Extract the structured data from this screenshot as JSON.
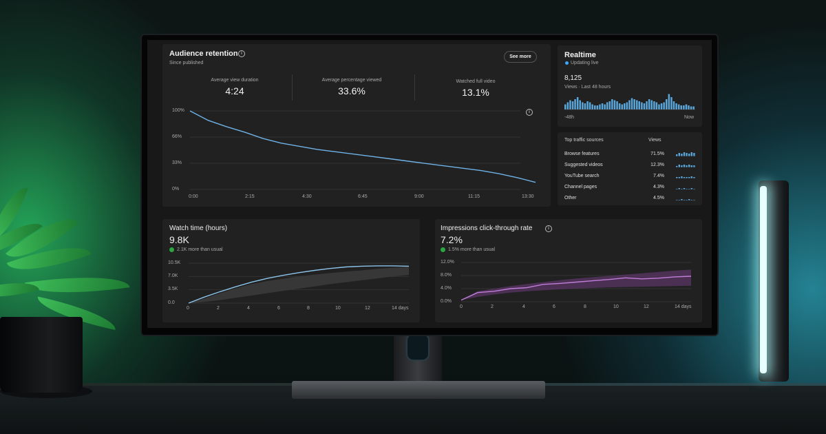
{
  "retention": {
    "title": "Audience retention",
    "subtitle": "Since published",
    "see_more": "See more",
    "metrics": [
      {
        "label": "Average view duration",
        "value": "4:24"
      },
      {
        "label": "Average percentage viewed",
        "value": "33.6%"
      },
      {
        "label": "Watched full video",
        "value": "13.1%"
      }
    ],
    "y_ticks": [
      "100%",
      "66%",
      "33%",
      "0%"
    ],
    "x_ticks": [
      "0:00",
      "2:15",
      "4:30",
      "6:45",
      "9:00",
      "11:15",
      "13:30"
    ]
  },
  "realtime": {
    "title": "Realtime",
    "status": "Updating live",
    "count": "8,125",
    "caption": "Views · Last 48 hours",
    "x_start": "-48h",
    "x_end": "Now"
  },
  "traffic": {
    "header": "Top traffic sources",
    "views_header": "Views",
    "rows": [
      {
        "label": "Browse features",
        "pct": "71.5%"
      },
      {
        "label": "Suggested videos",
        "pct": "12.3%"
      },
      {
        "label": "YouTube search",
        "pct": "7.4%"
      },
      {
        "label": "Channel pages",
        "pct": "4.3%"
      },
      {
        "label": "Other",
        "pct": "4.5%"
      }
    ]
  },
  "watch_time": {
    "title": "Watch time (hours)",
    "value": "9.8K",
    "delta": "2.1K more than usual",
    "y_ticks": [
      "10.5K",
      "7.0K",
      "3.5K",
      "0.0"
    ],
    "x_ticks": [
      "0",
      "2",
      "4",
      "6",
      "8",
      "10",
      "12",
      "14 days"
    ]
  },
  "ctr": {
    "title": "Impressions click-through rate",
    "value": "7.2%",
    "delta": "1.5% more than usual",
    "y_ticks": [
      "12.0%",
      "8.0%",
      "4.0%",
      "0.0%"
    ],
    "x_ticks": [
      "0",
      "2",
      "4",
      "6",
      "8",
      "10",
      "12",
      "14 days"
    ]
  },
  "colors": {
    "retention_line": "#6fb3e8",
    "watch_line": "#8cc4ec",
    "ctr_line": "#c07ed8",
    "realtime_bar": "#5aa7dc",
    "positive": "#2ba640"
  },
  "chart_data": [
    {
      "type": "line",
      "title": "Audience retention",
      "x": [
        "0:00",
        "0:30",
        "1:00",
        "1:30",
        "2:15",
        "3:00",
        "3:45",
        "4:30",
        "5:15",
        "6:00",
        "6:45",
        "7:30",
        "8:15",
        "9:00",
        "9:45",
        "10:30",
        "11:15",
        "12:00",
        "12:45",
        "13:30"
      ],
      "values": [
        100,
        88,
        80,
        73,
        65,
        59,
        55,
        51,
        48,
        45,
        42,
        39,
        36,
        33,
        30,
        27,
        24,
        20,
        15,
        9
      ],
      "ylim": [
        0,
        100
      ],
      "y_ticks": [
        "100%",
        "66%",
        "33%",
        "0%"
      ]
    },
    {
      "type": "line",
      "title": "Watch time (hours)",
      "x": [
        0,
        1,
        2,
        3,
        4,
        5,
        6,
        7,
        8,
        9,
        10,
        11,
        12,
        13,
        14
      ],
      "values": [
        0,
        1600,
        3000,
        4300,
        5500,
        6500,
        7300,
        8000,
        8600,
        9100,
        9500,
        9700,
        9800,
        9800,
        9700
      ],
      "band_low": [
        0,
        300,
        800,
        1400,
        2000,
        2600,
        3200,
        3800,
        4400,
        5000,
        5500,
        6000,
        6500,
        7000,
        7400
      ],
      "band_high": [
        0,
        1200,
        2600,
        3900,
        5000,
        5800,
        6400,
        7000,
        7500,
        7900,
        8300,
        8600,
        9000,
        9300,
        9600
      ],
      "ylim": [
        0,
        10500
      ]
    },
    {
      "type": "line",
      "title": "Impressions click-through rate",
      "x": [
        0,
        1,
        2,
        3,
        4,
        5,
        6,
        7,
        8,
        9,
        10,
        11,
        12,
        13,
        14
      ],
      "values": [
        0.5,
        2.8,
        3.2,
        4.0,
        4.3,
        5.3,
        5.6,
        6.0,
        6.4,
        6.8,
        7.3,
        7.0,
        7.2,
        7.6,
        7.8
      ],
      "band_low": [
        0.5,
        1.5,
        2.2,
        2.8,
        3.2,
        3.5,
        3.8,
        4.0,
        4.2,
        4.4,
        4.5,
        4.6,
        4.7,
        4.8,
        4.9
      ],
      "band_high": [
        0.5,
        3.2,
        4.0,
        4.8,
        5.4,
        6.0,
        6.6,
        7.1,
        7.5,
        7.9,
        8.3,
        8.7,
        9.1,
        9.5,
        9.8
      ],
      "ylim": [
        0,
        12
      ]
    },
    {
      "type": "bar",
      "title": "Realtime",
      "values": [
        5,
        7,
        9,
        8,
        10,
        12,
        9,
        7,
        6,
        8,
        7,
        5,
        4,
        4,
        5,
        6,
        5,
        7,
        8,
        10,
        9,
        8,
        6,
        5,
        6,
        7,
        9,
        11,
        10,
        9,
        8,
        7,
        6,
        8,
        10,
        9,
        8,
        7,
        5,
        6,
        7,
        10,
        15,
        12,
        8,
        6,
        5,
        4,
        4,
        5,
        4,
        3,
        3
      ],
      "ylim": [
        0,
        16
      ]
    }
  ]
}
